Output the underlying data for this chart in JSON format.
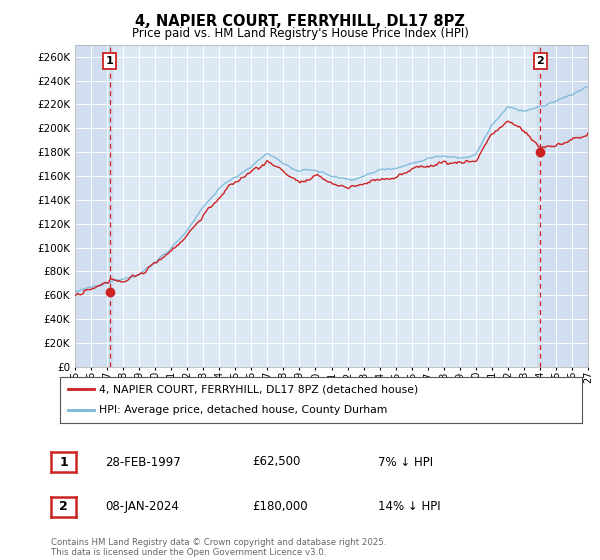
{
  "title": "4, NAPIER COURT, FERRYHILL, DL17 8PZ",
  "subtitle": "Price paid vs. HM Land Registry's House Price Index (HPI)",
  "sale1_date": "28-FEB-1997",
  "sale1_price": 62500,
  "sale1_hpi": "7% ↓ HPI",
  "sale1_label": "1",
  "sale2_date": "08-JAN-2024",
  "sale2_price": 180000,
  "sale2_hpi": "14% ↓ HPI",
  "sale2_label": "2",
  "legend_line1": "4, NAPIER COURT, FERRYHILL, DL17 8PZ (detached house)",
  "legend_line2": "HPI: Average price, detached house, County Durham",
  "footer": "Contains HM Land Registry data © Crown copyright and database right 2025.\nThis data is licensed under the Open Government Licence v3.0.",
  "hpi_color": "#7ab8d9",
  "price_color": "#cc2222",
  "dashed_line_color": "#cc2222",
  "background_plot": "#dde8f5",
  "background_sale": "#c8d8ee",
  "ylim_min": 0,
  "ylim_max": 270000,
  "ytick_step": 20000,
  "x_start_year": 1995,
  "x_end_year": 2027
}
